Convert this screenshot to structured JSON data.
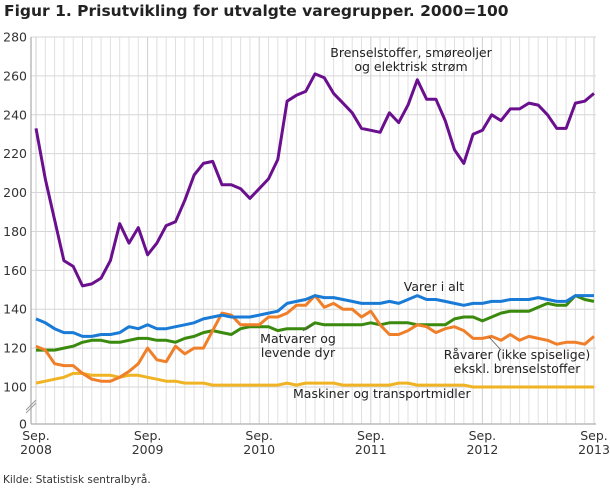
{
  "title": "Figur 1. Prisutvikling for utvalgte varegrupper. 2000=100",
  "source": "Kilde: Statistisk sentralbyrå.",
  "chart_data": {
    "type": "line",
    "title": "Figur 1. Prisutvikling for utvalgte varegrupper. 2000=100",
    "xlabel": "",
    "ylabel": "",
    "ylim": [
      100,
      280
    ],
    "y_axis_break": true,
    "y_ticks": [
      "0",
      "100",
      "120",
      "140",
      "160",
      "180",
      "200",
      "220",
      "240",
      "260",
      "280"
    ],
    "x_ticks": [
      {
        "line1": "Sep.",
        "line2": "2008"
      },
      {
        "line1": "Sep.",
        "line2": "2009"
      },
      {
        "line1": "Sep.",
        "line2": "2010"
      },
      {
        "line1": "Sep.",
        "line2": "2011"
      },
      {
        "line1": "Sep.",
        "line2": "2012"
      },
      {
        "line1": "Sep.",
        "line2": "2013"
      }
    ],
    "x_range": [
      "2008-09",
      "2013-09"
    ],
    "frequency": "monthly",
    "grid": true,
    "series": [
      {
        "name": "Brenselstoffer, smøreoljer og elektrisk strøm",
        "label_lines": [
          "Brenselstoffer, smøreoljer",
          "og elektrisk strøm"
        ],
        "color": "#6a0f8e",
        "values": [
          233,
          207,
          186,
          165,
          162,
          152,
          153,
          156,
          165,
          184,
          174,
          182,
          168,
          174,
          183,
          185,
          196,
          209,
          215,
          216,
          204,
          204,
          202,
          197,
          202,
          207,
          217,
          247,
          250,
          252,
          261,
          259,
          251,
          246,
          241,
          233,
          232,
          231,
          241,
          236,
          245,
          258,
          248,
          248,
          237,
          222,
          215,
          230,
          232,
          240,
          237,
          243,
          243,
          246,
          245,
          240,
          233,
          233,
          246,
          247,
          251
        ]
      },
      {
        "name": "Varer i alt",
        "label_lines": [
          "Varer i alt"
        ],
        "color": "#1a7bd6",
        "values": [
          135,
          133,
          130,
          128,
          128,
          126,
          126,
          127,
          127,
          128,
          131,
          130,
          132,
          130,
          130,
          131,
          132,
          133,
          135,
          136,
          137,
          136,
          136,
          136,
          137,
          138,
          139,
          143,
          144,
          145,
          147,
          146,
          146,
          145,
          144,
          143,
          143,
          143,
          144,
          143,
          145,
          147,
          145,
          145,
          144,
          143,
          142,
          143,
          143,
          144,
          144,
          145,
          145,
          145,
          146,
          145,
          144,
          144,
          147,
          147,
          147
        ]
      },
      {
        "name": "Matvarer og levende dyr",
        "label_lines": [
          "Matvarer og",
          "levende dyr"
        ],
        "color": "#3a8a0e",
        "values": [
          119,
          119,
          119,
          120,
          121,
          123,
          124,
          124,
          123,
          123,
          124,
          125,
          125,
          124,
          124,
          123,
          125,
          126,
          128,
          129,
          128,
          127,
          130,
          131,
          131,
          131,
          129,
          130,
          130,
          130,
          133,
          132,
          132,
          132,
          132,
          132,
          133,
          132,
          133,
          133,
          133,
          132,
          132,
          132,
          132,
          135,
          136,
          136,
          134,
          136,
          138,
          139,
          139,
          139,
          141,
          143,
          142,
          142,
          147,
          145,
          144
        ]
      },
      {
        "name": "Råvarer (ikke spiselige) ekskl. brenselstoffer",
        "label_lines": [
          "Råvarer (ikke spiselige)",
          "ekskl. brenselstoffer"
        ],
        "color": "#f07f2a",
        "values": [
          121,
          119,
          112,
          111,
          111,
          107,
          104,
          103,
          103,
          105,
          108,
          112,
          120,
          114,
          113,
          121,
          117,
          120,
          120,
          129,
          138,
          137,
          132,
          132,
          132,
          136,
          136,
          138,
          142,
          142,
          147,
          141,
          143,
          140,
          140,
          136,
          139,
          132,
          127,
          127,
          129,
          132,
          131,
          128,
          130,
          131,
          129,
          125,
          125,
          126,
          124,
          127,
          124,
          126,
          125,
          124,
          122,
          123,
          123,
          122,
          126
        ]
      },
      {
        "name": "Maskiner og transportmidler",
        "label_lines": [
          "Maskiner og transportmidler"
        ],
        "color": "#f0b323",
        "values": [
          102,
          103,
          104,
          105,
          107,
          107,
          106,
          106,
          106,
          105,
          106,
          106,
          105,
          104,
          103,
          103,
          102,
          102,
          102,
          101,
          101,
          101,
          101,
          101,
          101,
          101,
          101,
          102,
          101,
          102,
          102,
          102,
          102,
          101,
          101,
          101,
          101,
          101,
          101,
          102,
          102,
          101,
          101,
          101,
          101,
          101,
          101,
          100,
          100,
          100,
          100,
          100,
          100,
          100,
          100,
          100,
          100,
          100,
          100,
          100,
          100
        ]
      }
    ]
  }
}
